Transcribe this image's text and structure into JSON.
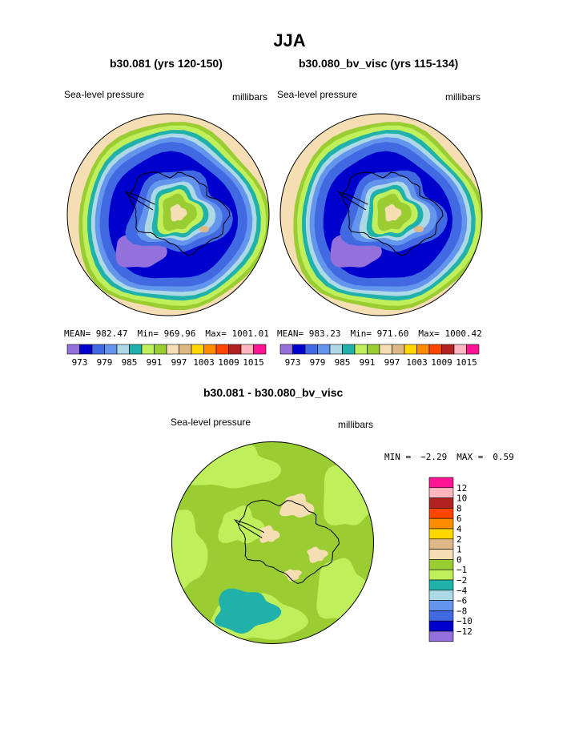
{
  "title": "JJA",
  "top_colors": [
    "#9370db",
    "#0000cd",
    "#4169e1",
    "#6495ed",
    "#add8e6",
    "#20b2aa",
    "#bfef5a",
    "#9acd32",
    "#f5deb3",
    "#deb887",
    "#ffd700",
    "#ff8c00",
    "#ff4500",
    "#b22222",
    "#ffb6c1",
    "#ff1493"
  ],
  "diff_colors": [
    "#9370db",
    "#0000cd",
    "#4169e1",
    "#6495ed",
    "#add8e6",
    "#20b2aa",
    "#bfef5a",
    "#9acd32",
    "#f5deb3",
    "#deb887",
    "#ffd700",
    "#ff8c00",
    "#ff4500",
    "#b22222",
    "#ffb6c1",
    "#ff1493"
  ],
  "coastline_color": "#000000",
  "chart_data": [
    {
      "type": "heatmap",
      "map": "polar stereographic, south pole",
      "title": "b30.081 (yrs 120-150)",
      "variable": "Sea-level pressure",
      "units": "millibars",
      "stats": {
        "mean": "MEAN= 982.47",
        "min": "Min= 969.96",
        "max": "Max= 1001.01"
      },
      "colorbar_labels": [
        "973",
        "979",
        "985",
        "991",
        "997",
        "1003",
        "1009",
        "1015"
      ],
      "contour_levels": [
        970,
        973,
        976,
        979,
        982,
        985,
        988,
        991,
        994,
        997,
        1000,
        1003,
        1006,
        1009,
        1012,
        1015
      ]
    },
    {
      "type": "heatmap",
      "map": "polar stereographic, south pole",
      "title": "b30.080_bv_visc (yrs 115-134)",
      "variable": "Sea-level pressure",
      "units": "millibars",
      "stats": {
        "mean": "MEAN= 983.23",
        "min": "Min= 971.60",
        "max": "Max= 1000.42"
      },
      "colorbar_labels": [
        "973",
        "979",
        "985",
        "991",
        "997",
        "1003",
        "1009",
        "1015"
      ],
      "contour_levels": [
        970,
        973,
        976,
        979,
        982,
        985,
        988,
        991,
        994,
        997,
        1000,
        1003,
        1006,
        1009,
        1012,
        1015
      ]
    },
    {
      "type": "heatmap",
      "map": "polar stereographic, south pole",
      "title": "b30.081 - b30.080_bv_visc",
      "variable": "Sea-level pressure",
      "units": "millibars",
      "stats": {
        "min_label": "MIN =",
        "min": "−2.29",
        "max_label": "MAX =",
        "max": "0.59"
      },
      "colorbar_labels": [
        "12",
        "10",
        "8",
        "6",
        "4",
        "2",
        "1",
        "0",
        "−1",
        "−2",
        "−4",
        "−6",
        "−8",
        "−10",
        "−12"
      ],
      "contour_levels": [
        -12,
        -10,
        -8,
        -6,
        -4,
        -2,
        -1,
        0,
        1,
        2,
        4,
        6,
        8,
        10,
        12
      ]
    }
  ]
}
